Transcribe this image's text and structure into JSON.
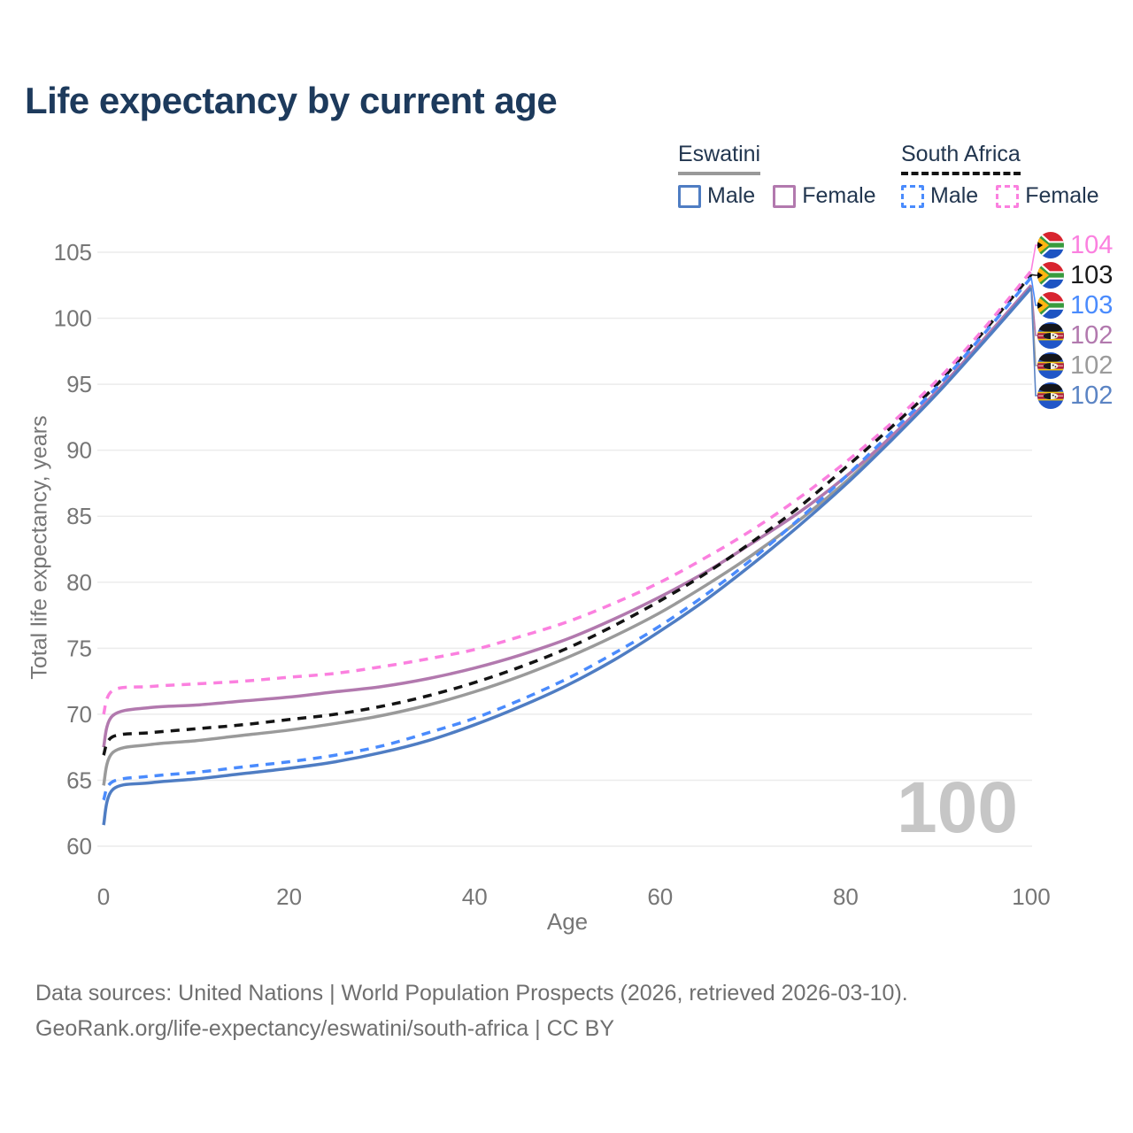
{
  "title": "Life expectancy by current age",
  "legend": {
    "groups": [
      {
        "name": "Eswatini",
        "line_style": "solid",
        "underline_color": "#999999",
        "items": [
          {
            "label": "Male",
            "color": "#4f7dc3",
            "dashed": false
          },
          {
            "label": "Female",
            "color": "#b279ae",
            "dashed": false
          }
        ]
      },
      {
        "name": "South Africa",
        "line_style": "dashed",
        "underline_color": "#141414",
        "items": [
          {
            "label": "Male",
            "color": "#4a8bfd",
            "dashed": true
          },
          {
            "label": "Female",
            "color": "#fb80df",
            "dashed": true
          }
        ]
      }
    ]
  },
  "chart_data": {
    "type": "line",
    "title": "Life expectancy by current age",
    "xlabel": "Age",
    "ylabel": "Total life expectancy, years",
    "xlim": [
      0,
      100
    ],
    "ylim": [
      60,
      105
    ],
    "x_ticks": [
      0,
      20,
      40,
      60,
      80,
      100
    ],
    "y_ticks": [
      60,
      65,
      70,
      75,
      80,
      85,
      90,
      95,
      100,
      105
    ],
    "grid": "horizontal",
    "legend_position": "top-right",
    "ages": [
      0,
      1,
      5,
      10,
      15,
      20,
      25,
      30,
      35,
      40,
      45,
      50,
      55,
      60,
      65,
      70,
      75,
      80,
      85,
      90,
      95,
      100
    ],
    "series": [
      {
        "id": "esw_both",
        "name": "Eswatini Both sexes",
        "country": "Eswatini",
        "sex": "both",
        "color": "#9a9a9a",
        "dashed": false,
        "values": [
          64.6,
          67.1,
          67.7,
          68.0,
          68.4,
          68.8,
          69.3,
          69.9,
          70.7,
          71.7,
          72.9,
          74.3,
          75.9,
          77.7,
          79.8,
          82.1,
          84.7,
          87.6,
          90.9,
          94.5,
          98.4,
          102.4
        ]
      },
      {
        "id": "esw_female",
        "name": "Eswatini Female",
        "country": "Eswatini",
        "sex": "female",
        "color": "#b279ae",
        "dashed": false,
        "values": [
          67.5,
          69.9,
          70.5,
          70.7,
          71.0,
          71.3,
          71.7,
          72.1,
          72.7,
          73.5,
          74.5,
          75.7,
          77.2,
          78.9,
          80.8,
          83.0,
          85.3,
          88.0,
          91.1,
          94.6,
          98.5,
          102.5
        ]
      },
      {
        "id": "esw_male",
        "name": "Eswatini Male",
        "country": "Eswatini",
        "sex": "male",
        "color": "#4f7dc3",
        "dashed": false,
        "values": [
          61.6,
          64.3,
          64.8,
          65.1,
          65.5,
          65.9,
          66.4,
          67.1,
          68.0,
          69.2,
          70.6,
          72.2,
          74.1,
          76.3,
          78.7,
          81.4,
          84.3,
          87.4,
          90.8,
          94.4,
          98.3,
          102.3
        ]
      },
      {
        "id": "sa_both",
        "name": "South Africa Both sexes",
        "country": "South Africa",
        "sex": "both",
        "color": "#141414",
        "dashed": true,
        "values": [
          66.9,
          68.3,
          68.6,
          68.9,
          69.2,
          69.6,
          70.0,
          70.6,
          71.4,
          72.4,
          73.6,
          75.0,
          76.7,
          78.6,
          80.7,
          83.1,
          85.7,
          88.7,
          91.8,
          95.1,
          99.1,
          103.3
        ]
      },
      {
        "id": "sa_male",
        "name": "South Africa Male",
        "country": "South Africa",
        "sex": "male",
        "color": "#4a8bfd",
        "dashed": true,
        "values": [
          63.5,
          64.9,
          65.3,
          65.6,
          66.0,
          66.4,
          66.9,
          67.6,
          68.6,
          69.7,
          71.1,
          72.7,
          74.6,
          76.7,
          79.1,
          81.8,
          84.8,
          88.0,
          91.4,
          94.9,
          98.9,
          103.1
        ]
      },
      {
        "id": "sa_female",
        "name": "South Africa Female",
        "country": "South Africa",
        "sex": "female",
        "color": "#fb80df",
        "dashed": true,
        "values": [
          70.0,
          71.8,
          72.1,
          72.3,
          72.5,
          72.8,
          73.1,
          73.6,
          74.2,
          74.9,
          75.9,
          77.0,
          78.4,
          80.0,
          81.9,
          84.0,
          86.4,
          89.1,
          92.1,
          95.4,
          99.3,
          103.6
        ]
      }
    ]
  },
  "end_labels": [
    {
      "value": "104",
      "series": "sa_female",
      "color": "#fb80df",
      "flag": "south-africa-flag",
      "flag_ref": "#flag-za"
    },
    {
      "value": "103",
      "series": "sa_both",
      "color": "#1b1b1b",
      "flag": "south-africa-flag",
      "flag_ref": "#flag-za"
    },
    {
      "value": "103",
      "series": "sa_male",
      "color": "#4a8bfd",
      "flag": "south-africa-flag",
      "flag_ref": "#flag-za"
    },
    {
      "value": "102",
      "series": "esw_female",
      "color": "#b279ae",
      "flag": "eswatini-flag",
      "flag_ref": "#flag-sz"
    },
    {
      "value": "102",
      "series": "esw_both",
      "color": "#9b9b9b",
      "flag": "eswatini-flag",
      "flag_ref": "#flag-sz"
    },
    {
      "value": "102",
      "series": "esw_male",
      "color": "#5b84c4",
      "flag": "eswatini-flag",
      "flag_ref": "#flag-sz"
    }
  ],
  "watermark": "100",
  "footer": {
    "line1": "Data sources: United Nations | World Population Prospects (2026, retrieved 2026-03-10).",
    "line2": "GeoRank.org/life-expectancy/eswatini/south-africa | CC BY"
  },
  "colors": {
    "title_text": "#1d3a5c",
    "axis_text": "#767676",
    "gridline": "#ececec",
    "watermark": "#c6c6c6",
    "footer_text": "#6f6f6f"
  }
}
